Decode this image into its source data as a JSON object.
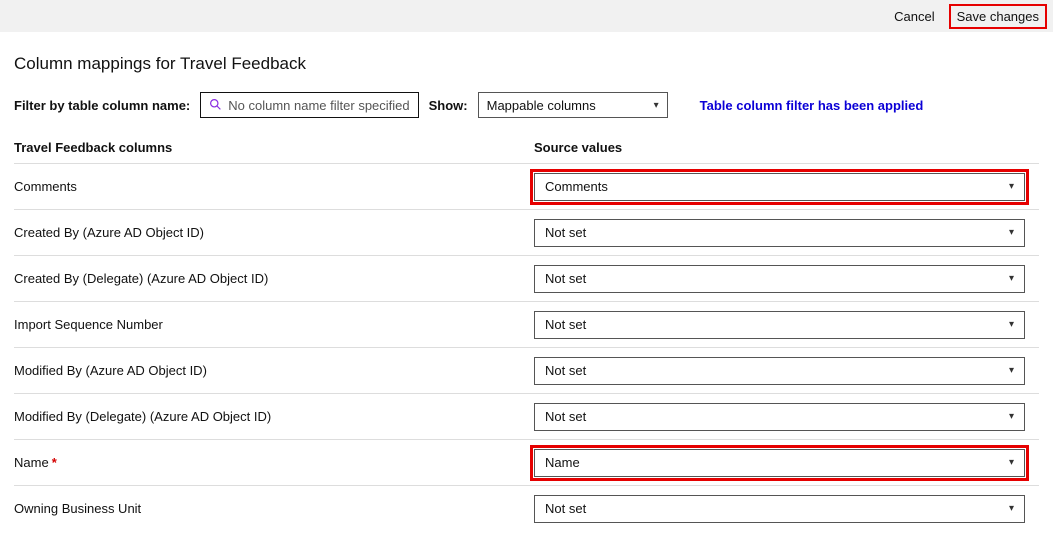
{
  "topbar": {
    "cancel_label": "Cancel",
    "save_label": "Save changes"
  },
  "page": {
    "title": "Column mappings for Travel Feedback"
  },
  "filters": {
    "filter_label": "Filter by table column name:",
    "filter_placeholder": "No column name filter specified",
    "show_label": "Show:",
    "show_value": "Mappable columns",
    "applied_msg": "Table column filter has been applied"
  },
  "table": {
    "header_left": "Travel Feedback columns",
    "header_right": "Source values",
    "rows": [
      {
        "label": "Comments",
        "required": false,
        "source": "Comments",
        "highlight": true
      },
      {
        "label": "Created By (Azure AD Object ID)",
        "required": false,
        "source": "Not set",
        "highlight": false
      },
      {
        "label": "Created By (Delegate) (Azure AD Object ID)",
        "required": false,
        "source": "Not set",
        "highlight": false
      },
      {
        "label": "Import Sequence Number",
        "required": false,
        "source": "Not set",
        "highlight": false
      },
      {
        "label": "Modified By (Azure AD Object ID)",
        "required": false,
        "source": "Not set",
        "highlight": false
      },
      {
        "label": "Modified By (Delegate) (Azure AD Object ID)",
        "required": false,
        "source": "Not set",
        "highlight": false
      },
      {
        "label": "Name",
        "required": true,
        "source": "Name",
        "highlight": true
      },
      {
        "label": "Owning Business Unit",
        "required": false,
        "source": "Not set",
        "highlight": false
      }
    ]
  },
  "styling": {
    "highlight_color": "#e60000",
    "link_color": "#0b00d6",
    "topbar_bg": "#f1f1f1",
    "border_color": "#dddddd"
  }
}
